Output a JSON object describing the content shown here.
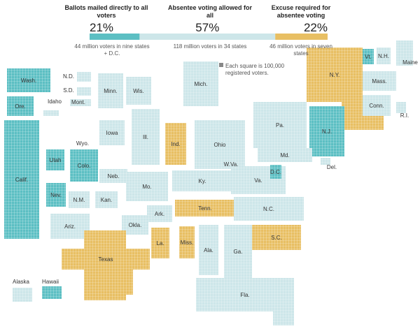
{
  "header": {
    "groups": [
      {
        "title": "Ballots mailed directly to all voters",
        "color": "#5cbfc3",
        "value": 21,
        "value_label": "21%",
        "note": "44 million voters in nine states + D.C."
      },
      {
        "title": "Absentee voting allowed for all",
        "color": "#cde6e9",
        "value": 57,
        "value_label": "57%",
        "note": "118 million voters in 34 states"
      },
      {
        "title": "Excuse required for absentee voting",
        "color": "#e8bf63",
        "value": 22,
        "value_label": "22%",
        "note": "46 million voters in seven states"
      }
    ]
  },
  "legend_note": "Each square is 100,000 registered voters.",
  "states": [
    {
      "label": "Wash.",
      "group": 0
    },
    {
      "label": "Ore.",
      "group": 0
    },
    {
      "label": "Idaho",
      "group": 1
    },
    {
      "label": "Mont.",
      "group": 1
    },
    {
      "label": "N.D.",
      "group": 1
    },
    {
      "label": "S.D.",
      "group": 1
    },
    {
      "label": "Minn.",
      "group": 1
    },
    {
      "label": "Wis.",
      "group": 1
    },
    {
      "label": "Mich.",
      "group": 1
    },
    {
      "label": "Calif.",
      "group": 0
    },
    {
      "label": "Utah",
      "group": 0
    },
    {
      "label": "Wyo.",
      "group": 1
    },
    {
      "label": "Colo.",
      "group": 0
    },
    {
      "label": "Nev.",
      "group": 0
    },
    {
      "label": "N.M.",
      "group": 1
    },
    {
      "label": "Ariz.",
      "group": 1
    },
    {
      "label": "Iowa",
      "group": 1
    },
    {
      "label": "Neb.",
      "group": 1
    },
    {
      "label": "Kan.",
      "group": 1
    },
    {
      "label": "Ill.",
      "group": 1
    },
    {
      "label": "Ind.",
      "group": 2
    },
    {
      "label": "Ohio",
      "group": 1
    },
    {
      "label": "Mo.",
      "group": 1
    },
    {
      "label": "Okla.",
      "group": 1
    },
    {
      "label": "Ark.",
      "group": 1
    },
    {
      "label": "Texas",
      "group": 2
    },
    {
      "label": "La.",
      "group": 2
    },
    {
      "label": "Miss.",
      "group": 2
    },
    {
      "label": "Ala.",
      "group": 1
    },
    {
      "label": "Ga.",
      "group": 1
    },
    {
      "label": "Tenn.",
      "group": 2
    },
    {
      "label": "Ky.",
      "group": 1
    },
    {
      "label": "W.Va.",
      "group": 1
    },
    {
      "label": "Va.",
      "group": 1
    },
    {
      "label": "N.C.",
      "group": 1
    },
    {
      "label": "S.C.",
      "group": 2
    },
    {
      "label": "Fla.",
      "group": 1
    },
    {
      "label": "Pa.",
      "group": 1
    },
    {
      "label": "N.Y.",
      "group": 2
    },
    {
      "label": "N.J.",
      "group": 0
    },
    {
      "label": "Md.",
      "group": 1
    },
    {
      "label": "D.C.",
      "group": 0
    },
    {
      "label": "Del.",
      "group": 1
    },
    {
      "label": "Vt.",
      "group": 0
    },
    {
      "label": "N.H.",
      "group": 1
    },
    {
      "label": "Maine",
      "group": 1
    },
    {
      "label": "Mass.",
      "group": 1
    },
    {
      "label": "Conn.",
      "group": 1
    },
    {
      "label": "R.I.",
      "group": 1
    },
    {
      "label": "Alaska",
      "group": 1
    },
    {
      "label": "Hawaii",
      "group": 0
    }
  ]
}
